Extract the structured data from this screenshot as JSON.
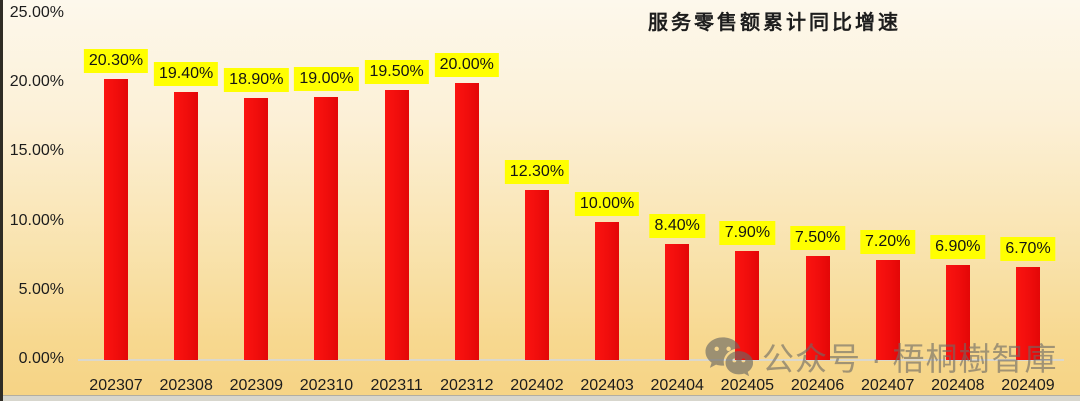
{
  "title": "服务零售额累计同比增速",
  "watermark": {
    "icon": "wechat-icon",
    "text": "公众号 · 梧桐樹智庫"
  },
  "colors": {
    "background_top": "#fdf8ec",
    "background_bottom": "#f6d384",
    "bar": "#ee0d0c",
    "value_label_background": "#ffff00",
    "value_label_text": "#141414",
    "axis_line": "#dad8cd",
    "watermark_gray": "#6c6a66"
  },
  "chart_data": {
    "type": "bar",
    "title": "服务零售额累计同比增速",
    "categories": [
      "202307",
      "202308",
      "202309",
      "202310",
      "202311",
      "202312",
      "202402",
      "202403",
      "202404",
      "202405",
      "202406",
      "202407",
      "202408",
      "202409"
    ],
    "values": [
      20.3,
      19.4,
      18.9,
      19.0,
      19.5,
      20.0,
      12.3,
      10.0,
      8.4,
      7.9,
      7.5,
      7.2,
      6.9,
      6.7
    ],
    "value_labels": [
      "20.30%",
      "19.40%",
      "18.90%",
      "19.00%",
      "19.50%",
      "20.00%",
      "12.30%",
      "10.00%",
      "8.40%",
      "7.90%",
      "7.50%",
      "7.20%",
      "6.90%",
      "6.70%"
    ],
    "xlabel": "",
    "ylabel": "",
    "ylim": [
      0,
      25
    ],
    "yticks": [
      0,
      5,
      10,
      15,
      20,
      25
    ],
    "ytick_labels": [
      "0.00%",
      "5.00%",
      "10.00%",
      "15.00%",
      "20.00%",
      "25.00%"
    ],
    "grid": false,
    "legend": null,
    "series_name": "服务零售额累计同比增速"
  }
}
